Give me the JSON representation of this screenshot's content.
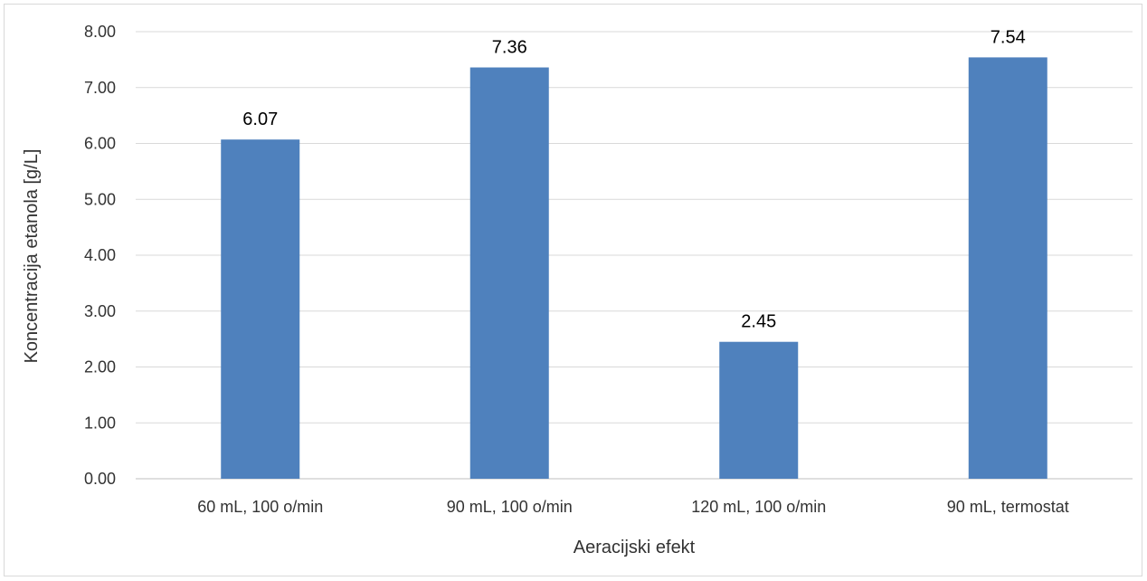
{
  "chart_data": {
    "type": "bar",
    "categories": [
      "60 mL, 100 o/min",
      "90 mL, 100 o/min",
      "120 mL, 100 o/min",
      "90 mL, termostat"
    ],
    "values": [
      6.07,
      7.36,
      2.45,
      7.54
    ],
    "value_labels": [
      "6.07",
      "7.36",
      "2.45",
      "7.54"
    ],
    "xlabel": "Aeracijski efekt",
    "ylabel": "Koncentracija etanola  [g/L]",
    "ylim": [
      0,
      8
    ],
    "yticks": [
      "0.00",
      "1.00",
      "2.00",
      "3.00",
      "4.00",
      "5.00",
      "6.00",
      "7.00",
      "8.00"
    ],
    "grid": true,
    "legend": "none",
    "colors": {
      "bar": "#4f81bd",
      "grid": "#d9d9d9",
      "axis": "#bfbfbf"
    }
  }
}
